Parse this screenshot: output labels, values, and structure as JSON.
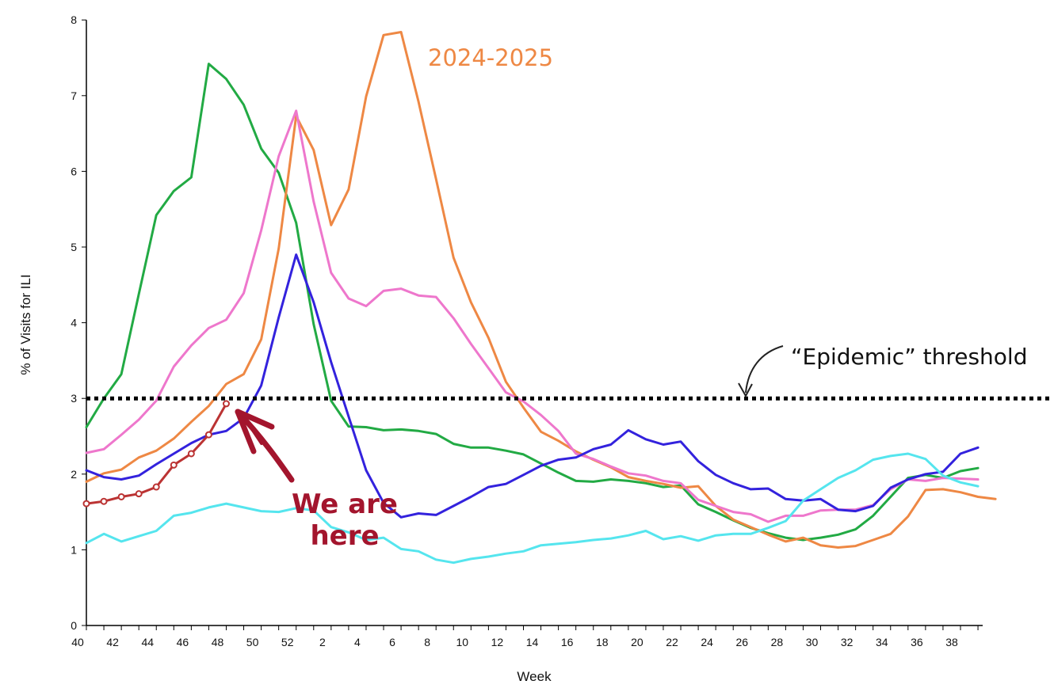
{
  "chart_data": {
    "type": "line",
    "xlabel": "Week",
    "ylabel": "% of Visits for ILI",
    "ylim": [
      0,
      8
    ],
    "yticks": [
      "0",
      "1",
      "2",
      "3",
      "4",
      "5",
      "6",
      "7",
      "8"
    ],
    "x_tick_labels": [
      "40",
      "42",
      "44",
      "46",
      "48",
      "50",
      "52",
      "2",
      "4",
      "6",
      "8",
      "10",
      "12",
      "14",
      "16",
      "18",
      "20",
      "22",
      "24",
      "26",
      "28",
      "30",
      "32",
      "34",
      "36",
      "38"
    ],
    "grid": false,
    "threshold": {
      "value": 3,
      "label": "“Epidemic” threshold"
    },
    "annotation": {
      "line1": "We are",
      "line2": "here"
    },
    "series_label": "2024-2025",
    "series": [
      {
        "color": "#22aa44",
        "values": [
          2.62,
          3.0,
          3.32,
          4.38,
          5.42,
          5.74,
          5.92,
          7.42,
          7.22,
          6.88,
          6.3,
          5.98,
          5.32,
          3.98,
          2.97,
          2.63,
          2.62,
          2.58,
          2.59,
          2.57,
          2.53,
          2.4,
          2.35,
          2.35,
          2.31,
          2.26,
          2.14,
          2.02,
          1.91,
          1.9,
          1.93,
          1.91,
          1.88,
          1.83,
          1.85,
          1.6,
          1.5,
          1.39,
          1.29,
          1.22,
          1.16,
          1.13,
          1.16,
          1.2,
          1.27,
          1.45,
          1.7,
          1.95,
          1.99,
          1.95,
          2.04,
          2.08
        ]
      },
      {
        "color": "#ee8844",
        "values": [
          1.9,
          2.01,
          2.06,
          2.22,
          2.31,
          2.47,
          2.69,
          2.9,
          3.19,
          3.32,
          3.78,
          4.98,
          6.73,
          6.28,
          5.29,
          5.76,
          6.99,
          7.8,
          7.84,
          6.92,
          5.9,
          4.86,
          4.27,
          3.8,
          3.22,
          2.88,
          2.56,
          2.44,
          2.3,
          2.19,
          2.09,
          1.96,
          1.91,
          1.87,
          1.82,
          1.84,
          1.58,
          1.4,
          1.3,
          1.2,
          1.11,
          1.16,
          1.06,
          1.03,
          1.05,
          1.13,
          1.21,
          1.44,
          1.79,
          1.8,
          1.76,
          1.7,
          1.67
        ]
      },
      {
        "color": "#ee77cc",
        "values": [
          2.28,
          2.33,
          2.52,
          2.72,
          2.97,
          3.42,
          3.7,
          3.93,
          4.04,
          4.39,
          5.22,
          6.2,
          6.8,
          5.6,
          4.66,
          4.32,
          4.22,
          4.42,
          4.45,
          4.36,
          4.34,
          4.06,
          3.72,
          3.4,
          3.08,
          2.96,
          2.78,
          2.57,
          2.27,
          2.2,
          2.1,
          2.01,
          1.98,
          1.91,
          1.88,
          1.66,
          1.58,
          1.5,
          1.47,
          1.37,
          1.45,
          1.45,
          1.52,
          1.53,
          1.53,
          1.59,
          1.8,
          1.93,
          1.91,
          1.95,
          1.94,
          1.93
        ]
      },
      {
        "color": "#3322dd",
        "values": [
          2.05,
          1.96,
          1.93,
          1.98,
          2.13,
          2.27,
          2.41,
          2.52,
          2.57,
          2.74,
          3.17,
          4.07,
          4.9,
          4.27,
          3.48,
          2.76,
          2.05,
          1.62,
          1.43,
          1.48,
          1.46,
          1.58,
          1.7,
          1.83,
          1.87,
          1.99,
          2.11,
          2.19,
          2.22,
          2.33,
          2.39,
          2.58,
          2.46,
          2.39,
          2.43,
          2.17,
          1.99,
          1.88,
          1.8,
          1.81,
          1.67,
          1.65,
          1.67,
          1.53,
          1.51,
          1.58,
          1.82,
          1.93,
          2.0,
          2.03,
          2.27,
          2.35
        ]
      },
      {
        "color": "#55e5ee",
        "values": [
          1.09,
          1.21,
          1.11,
          1.18,
          1.25,
          1.45,
          1.49,
          1.56,
          1.61,
          1.56,
          1.51,
          1.5,
          1.55,
          1.52,
          1.3,
          1.23,
          1.13,
          1.16,
          1.01,
          0.98,
          0.87,
          0.83,
          0.88,
          0.91,
          0.95,
          0.98,
          1.06,
          1.08,
          1.1,
          1.13,
          1.15,
          1.19,
          1.25,
          1.14,
          1.18,
          1.12,
          1.19,
          1.21,
          1.21,
          1.29,
          1.38,
          1.65,
          1.8,
          1.95,
          2.05,
          2.19,
          2.24,
          2.27,
          2.2,
          1.98,
          1.89,
          1.84
        ]
      },
      {
        "color": "#bb3333",
        "markers": true,
        "values": [
          1.61,
          1.64,
          1.7,
          1.74,
          1.83,
          2.12,
          2.27,
          2.52,
          2.93
        ]
      }
    ]
  }
}
